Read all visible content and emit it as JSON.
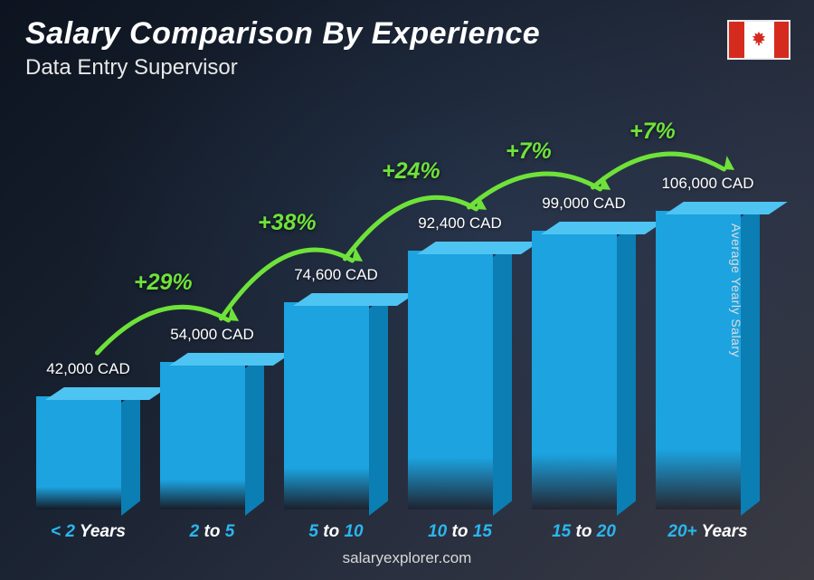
{
  "title": "Salary Comparison By Experience",
  "subtitle": "Data Entry Supervisor",
  "country_flag": "canada",
  "y_axis_label": "Average Yearly Salary",
  "footer": "salaryexplorer.com",
  "currency": "CAD",
  "chart": {
    "type": "bar",
    "bar_color_front": "#1ca3e0",
    "bar_color_top": "#4ec4f2",
    "bar_color_side": "#0b7eb4",
    "pct_color": "#6fe23a",
    "x_label_highlight_color": "#2bb6ef",
    "x_label_unit_color": "#ffffff",
    "value_label_color": "#ffffff",
    "title_color": "#ffffff",
    "subtitle_color": "#e8e8e8",
    "background_gradient": [
      "#0d1420",
      "#1a2332",
      "#2a3040",
      "#3a3a42"
    ],
    "max_value": 106000,
    "bars": [
      {
        "label_pre": "< 2",
        "label_unit": "Years",
        "value": 42000,
        "value_label": "42,000 CAD",
        "pct": null
      },
      {
        "label_pre": "2",
        "label_mid": " to ",
        "label_post": "5",
        "value": 54000,
        "value_label": "54,000 CAD",
        "pct": "+29%"
      },
      {
        "label_pre": "5",
        "label_mid": " to ",
        "label_post": "10",
        "value": 74600,
        "value_label": "74,600 CAD",
        "pct": "+38%"
      },
      {
        "label_pre": "10",
        "label_mid": " to ",
        "label_post": "15",
        "value": 92400,
        "value_label": "92,400 CAD",
        "pct": "+24%"
      },
      {
        "label_pre": "15",
        "label_mid": " to ",
        "label_post": "20",
        "value": 99000,
        "value_label": "99,000 CAD",
        "pct": "+7%"
      },
      {
        "label_pre": "20+",
        "label_unit": "Years",
        "value": 106000,
        "value_label": "106,000 CAD",
        "pct": "+7%"
      }
    ]
  }
}
